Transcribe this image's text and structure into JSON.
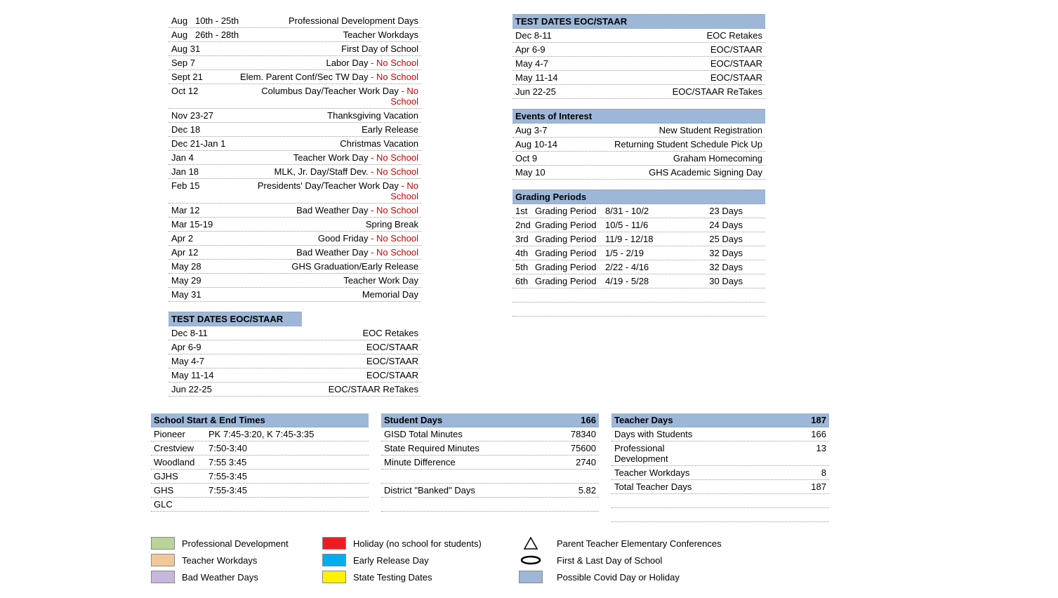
{
  "calendar_events": [
    {
      "date": "Aug   10th - 25th",
      "desc": "Professional Development Days",
      "no_school": false
    },
    {
      "date": "Aug   26th - 28th",
      "desc": "Teacher Workdays",
      "no_school": false
    },
    {
      "date": "Aug 31",
      "desc": "First Day of School",
      "no_school": false
    },
    {
      "date": "Sep 7",
      "desc": "Labor Day",
      "no_school": true
    },
    {
      "date": "Sept 21",
      "desc": "Elem. Parent Conf/Sec TW Day ",
      "no_school": true
    },
    {
      "date": "Oct 12",
      "desc": "Columbus Day/Teacher Work Day",
      "no_school": true
    },
    {
      "date": "Nov 23-27",
      "desc": "Thanksgiving Vacation",
      "no_school": false
    },
    {
      "date": "Dec 18",
      "desc": "Early Release",
      "no_school": false
    },
    {
      "date": "Dec 21-Jan 1",
      "desc": "Christmas Vacation",
      "no_school": false
    },
    {
      "date": "Jan 4",
      "desc": "Teacher Work Day",
      "no_school": true
    },
    {
      "date": "Jan 18",
      "desc": "MLK, Jr. Day/Staff Dev.",
      "no_school": true
    },
    {
      "date": "Feb 15",
      "desc": "Presidents' Day/Teacher Work Day",
      "no_school": true
    },
    {
      "date": "Mar 12",
      "desc": "Bad Weather Day",
      "no_school": true
    },
    {
      "date": "Mar 15-19",
      "desc": "Spring Break",
      "no_school": false
    },
    {
      "date": "Apr 2",
      "desc": "Good Friday",
      "no_school": true
    },
    {
      "date": "Apr 12",
      "desc": "Bad Weather Day",
      "no_school": true
    },
    {
      "date": "May 28",
      "desc": "GHS Graduation/Early Release",
      "no_school": false
    },
    {
      "date": "May 29",
      "desc": "Teacher Work Day",
      "no_school": false
    },
    {
      "date": "May 31",
      "desc": "Memorial Day",
      "no_school": false
    }
  ],
  "test_dates": {
    "title": "TEST DATES  EOC/STAAR",
    "rows": [
      {
        "date": "Dec 8-11",
        "desc": "EOC Retakes"
      },
      {
        "date": "Apr 6-9",
        "desc": "EOC/STAAR"
      },
      {
        "date": "May 4-7",
        "desc": "EOC/STAAR"
      },
      {
        "date": "May 11-14",
        "desc": "EOC/STAAR"
      },
      {
        "date": "Jun 22-25",
        "desc": "EOC/STAAR ReTakes"
      }
    ]
  },
  "events_interest": {
    "title": "Events of Interest",
    "rows": [
      {
        "date": "Aug 3-7",
        "desc": "New Student Registration"
      },
      {
        "date": "Aug 10-14",
        "desc": "Returning Student Schedule Pick Up"
      },
      {
        "date": "Oct 9",
        "desc": "Graham Homecoming"
      },
      {
        "date": "May 10",
        "desc": "GHS Academic Signing Day"
      }
    ]
  },
  "grading_periods": {
    "title": "Grading Periods",
    "rows": [
      {
        "num": "1st",
        "label": "Grading Period",
        "dates": "8/31 - 10/2",
        "days": "23 Days"
      },
      {
        "num": "2nd",
        "label": "Grading Period",
        "dates": "10/5 - 11/6",
        "days": "24 Days"
      },
      {
        "num": "3rd",
        "label": "Grading Period",
        "dates": "11/9 - 12/18",
        "days": "25 Days"
      },
      {
        "num": "4th",
        "label": "Grading Period",
        "dates": "1/5 - 2/19",
        "days": "32 Days"
      },
      {
        "num": "5th",
        "label": "Grading Period",
        "dates": "2/22 - 4/16",
        "days": "32 Days"
      },
      {
        "num": "6th",
        "label": "Grading Period",
        "dates": "4/19 - 5/28",
        "days": "30 Days"
      }
    ]
  },
  "start_end_times": {
    "title": "School Start & End Times",
    "rows": [
      {
        "school": "Pioneer",
        "times": "PK 7:45-3:20, K 7:45-3:35"
      },
      {
        "school": "Crestview",
        "times": "7:50-3:40"
      },
      {
        "school": "Woodland",
        "times": "7:55  3:45"
      },
      {
        "school": "GJHS",
        "times": "7:55-3:45"
      },
      {
        "school": "GHS",
        "times": "7:55-3:45"
      },
      {
        "school": "GLC",
        "times": ""
      }
    ]
  },
  "student_days": {
    "title": "Student Days",
    "title_val": "166",
    "rows": [
      {
        "label": "GISD Total Minutes",
        "val": "78340"
      },
      {
        "label": "State Required Minutes",
        "val": "75600"
      },
      {
        "label": "Minute Difference",
        "val": "2740"
      },
      {
        "label": "",
        "val": ""
      },
      {
        "label": "District \"Banked\" Days",
        "val": "5.82"
      },
      {
        "label": "",
        "val": ""
      }
    ]
  },
  "teacher_days": {
    "title": "Teacher Days",
    "title_val": "187",
    "rows": [
      {
        "label": "Days with Students",
        "val": "166"
      },
      {
        "label": "Professional Development",
        "val": "13"
      },
      {
        "label": "Teacher Workdays",
        "val": "8"
      },
      {
        "label": "Total Teacher Days",
        "val": "187"
      },
      {
        "label": "",
        "val": ""
      },
      {
        "label": "",
        "val": ""
      }
    ]
  },
  "legend": {
    "col1": [
      {
        "color": "#b8d49a",
        "label": "Professional Development"
      },
      {
        "color": "#f2c89a",
        "label": "Teacher Workdays"
      },
      {
        "color": "#c5b8dc",
        "label": "Bad Weather Days"
      }
    ],
    "col2": [
      {
        "color": "#ed1c24",
        "label": "Holiday (no school for students)"
      },
      {
        "color": "#00aeef",
        "label": "Early Release Day"
      },
      {
        "color": "#fff200",
        "label": "State Testing Dates"
      }
    ],
    "col3": [
      {
        "symbol": "triangle",
        "label": "Parent Teacher Elementary Conferences"
      },
      {
        "symbol": "oval",
        "label": "First & Last Day of School"
      },
      {
        "color": "#9db7d8",
        "label": "Possible Covid Day or Holiday"
      }
    ]
  },
  "no_school_text": " - No School"
}
